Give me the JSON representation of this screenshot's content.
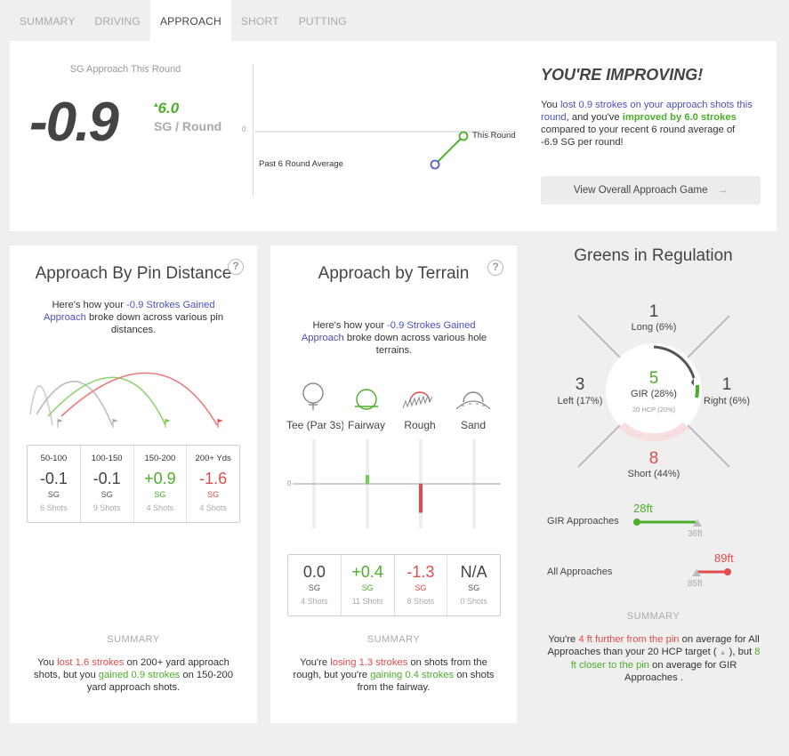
{
  "tabs": [
    "SUMMARY",
    "DRIVING",
    "APPROACH",
    "SHORT",
    "PUTTING"
  ],
  "active_tab": "APPROACH",
  "hero": {
    "label": "SG Approach This Round",
    "value": "-0.9",
    "delta_arrow": "▴",
    "delta": "6.0",
    "unit": "SG / Round",
    "chart_zero": "0",
    "past_label": "Past 6 Round Average",
    "this_label": "This Round",
    "heading": "YOU'RE IMPROVING!",
    "desc_1": "You ",
    "desc_2": "lost 0.9 strokes on your approach shots this round",
    "desc_3": ", and you've ",
    "desc_4": "improved by 6.0 strokes",
    "desc_5": " compared to your recent 6 round average of -6.9 SG per round!",
    "button": "View Overall Approach Game",
    "button_icon": "arrow-right-icon",
    "chart_data": {
      "type": "line",
      "categories": [
        "Past 6 Round Average",
        "This Round"
      ],
      "values": [
        -6.9,
        -0.9
      ]
    }
  },
  "pin": {
    "title": "Approach By Pin Distance",
    "help": "?",
    "intro_1": "Here's how your ",
    "intro_2": "-0.9 Strokes Gained Approach",
    "intro_3": " broke down across various pin distances.",
    "columns": [
      {
        "range": "50-100",
        "value": "-0.1",
        "sg": "SG",
        "shots": "6 Shots",
        "tone": "neutral"
      },
      {
        "range": "100-150",
        "value": "-0.1",
        "sg": "SG",
        "shots": "9 Shots",
        "tone": "neutral"
      },
      {
        "range": "150-200",
        "value": "+0.9",
        "sg": "SG",
        "shots": "4 Shots",
        "tone": "green"
      },
      {
        "range": "200+ Yds",
        "value": "-1.6",
        "sg": "SG",
        "shots": "4 Shots",
        "tone": "red"
      }
    ],
    "summary_label": "SUMMARY",
    "summary_1": "You ",
    "summary_2": "lost 1.6 strokes",
    "summary_3": " on 200+ yard approach shots, but you ",
    "summary_4": "gained 0.9 strokes",
    "summary_5": " on 150-200 yard approach shots."
  },
  "terrain": {
    "title": "Approach by Terrain",
    "help": "?",
    "intro_1": "Here's how your ",
    "intro_2": "-0.9 Strokes Gained Approach",
    "intro_3": " broke down across various hole terrains.",
    "icons": [
      "tee-icon",
      "fairway-icon",
      "rough-icon",
      "sand-icon"
    ],
    "labels": [
      "Tee (Par 3s)",
      "Fairway",
      "Rough",
      "Sand"
    ],
    "zero": "0",
    "columns": [
      {
        "value": "0.0",
        "sg": "SG",
        "shots": "4 Shots",
        "tone": "neutral"
      },
      {
        "value": "+0.4",
        "sg": "SG",
        "shots": "11 Shots",
        "tone": "green"
      },
      {
        "value": "-1.3",
        "sg": "SG",
        "shots": "8 Shots",
        "tone": "red"
      },
      {
        "value": "N/A",
        "sg": "SG",
        "shots": "0 Shots",
        "tone": "neutral"
      }
    ],
    "chart_data": {
      "type": "bar",
      "categories": [
        "Tee (Par 3s)",
        "Fairway",
        "Rough",
        "Sand"
      ],
      "values": [
        0.0,
        0.4,
        -1.3,
        0
      ]
    },
    "summary_label": "SUMMARY",
    "summary_1": "You're ",
    "summary_2": "losing 1.3 strokes",
    "summary_3": " on shots from the rough, but you're ",
    "summary_4": "gaining 0.4 strokes",
    "summary_5": " on shots from the fairway."
  },
  "gir": {
    "title": "Greens in Regulation",
    "long_n": "1",
    "long_l": "Long (6%)",
    "left_n": "3",
    "left_l": "Left (17%)",
    "right_n": "1",
    "right_l": "Right (6%)",
    "short_n": "8",
    "short_l": "Short (44%)",
    "center_n": "5",
    "center_l": "GIR (28%)",
    "center_sub": "20 HCP (20%)",
    "gir_label": "GIR Approaches",
    "gir_val": "28ft",
    "gir_target": "36ft",
    "all_label": "All Approaches",
    "all_val": "89ft",
    "all_target": "85ft",
    "summary_label": "SUMMARY",
    "summary_1": "You're ",
    "summary_2": "4 ft further from the pin",
    "summary_3": " on average for All Approaches than your 20 HCP target ( ",
    "summary_tri": "▲",
    "summary_4": " ), but ",
    "summary_5": "8 ft closer to the pin",
    "summary_6": " on average for GIR Approaches ."
  }
}
